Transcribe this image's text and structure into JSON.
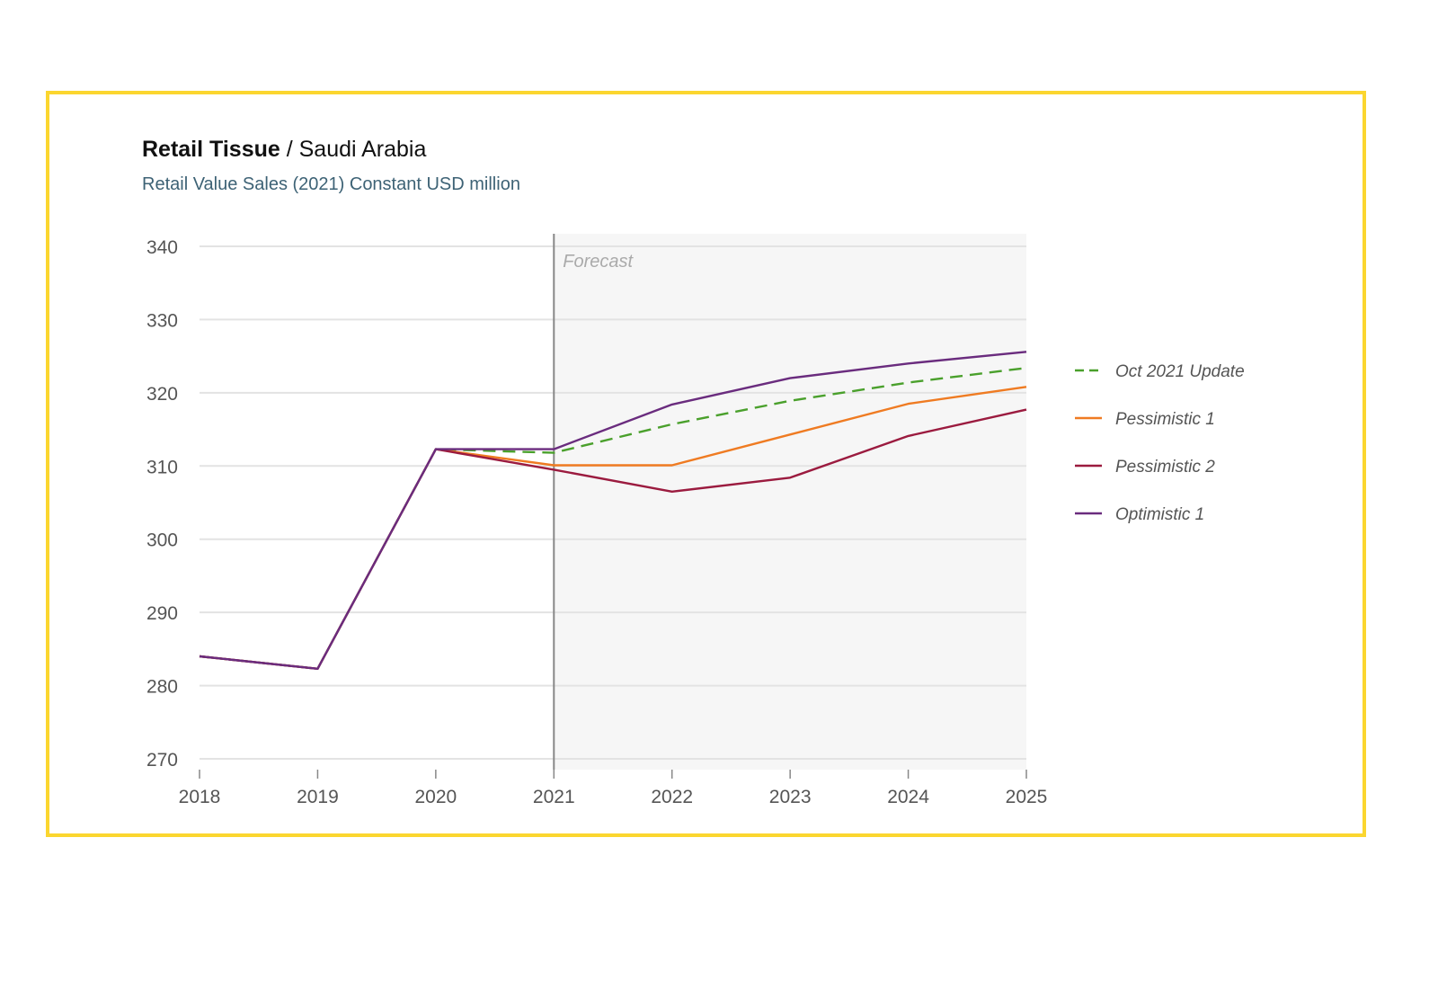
{
  "header": {
    "title_bold": "Retail Tissue",
    "title_rest": " / Saudi Arabia",
    "subtitle": "Retail Value Sales (2021) Constant USD million"
  },
  "chart_data": {
    "type": "line",
    "title": "Retail Tissue / Saudi Arabia",
    "subtitle": "Retail Value Sales (2021) Constant USD million",
    "xlabel": "",
    "ylabel": "",
    "x": [
      2018,
      2019,
      2020,
      2021,
      2022,
      2023,
      2024,
      2025
    ],
    "ylim": [
      270,
      340
    ],
    "yticks": [
      270,
      280,
      290,
      300,
      310,
      320,
      330,
      340
    ],
    "grid": true,
    "legend_position": "right",
    "forecast_start": 2021,
    "forecast_label": "Forecast",
    "series": [
      {
        "name": "Oct 2021 Update",
        "color": "#4aa02c",
        "dashed": true,
        "values": [
          284.0,
          282.3,
          312.3,
          311.8,
          315.7,
          318.9,
          321.4,
          323.4
        ]
      },
      {
        "name": "Pessimistic 1",
        "color": "#ef7b22",
        "dashed": false,
        "values": [
          284.0,
          282.3,
          312.3,
          310.1,
          310.1,
          314.3,
          318.5,
          320.8
        ]
      },
      {
        "name": "Pessimistic 2",
        "color": "#9b1b3f",
        "dashed": false,
        "values": [
          284.0,
          282.3,
          312.3,
          309.5,
          306.5,
          308.4,
          314.1,
          317.7
        ]
      },
      {
        "name": "Optimistic 1",
        "color": "#6a2c7e",
        "dashed": false,
        "values": [
          284.0,
          282.3,
          312.3,
          312.3,
          318.4,
          322.0,
          324.0,
          325.6
        ]
      }
    ]
  }
}
